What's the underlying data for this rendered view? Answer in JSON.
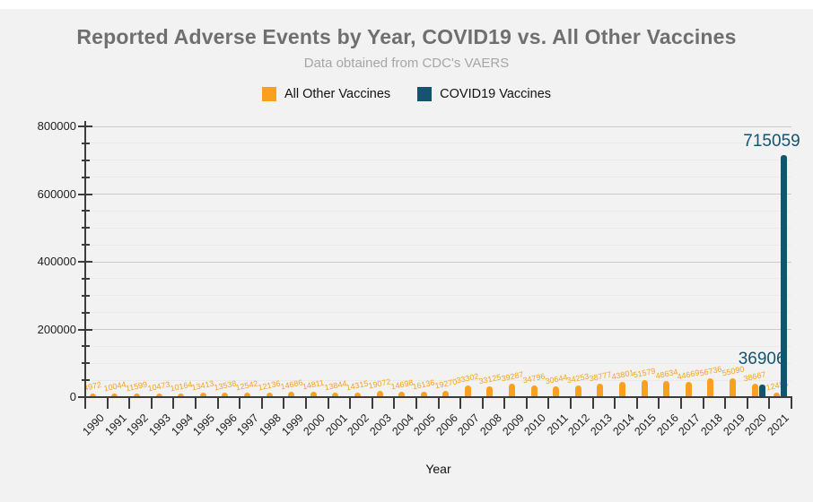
{
  "header": {
    "title": "Reported Adverse Events by Year, COVID19 vs. All Other Vaccines",
    "subtitle": "Data obtained from CDC's VAERS"
  },
  "legend": [
    {
      "label": "All Other Vaccines",
      "color": "#F9A11F"
    },
    {
      "label": "COVID19 Vaccines",
      "color": "#14546E"
    }
  ],
  "axes": {
    "x_title": "Year",
    "y_tick_labels": [
      "0",
      "200000",
      "400000",
      "600000",
      "800000"
    ]
  },
  "colors": {
    "page_background": "#f2f2f3",
    "title_text": "#6f6f6f",
    "subtitle_text": "#a6a6a6",
    "axis": "#3c3c3c",
    "grid_major": "#cbcbcb",
    "grid_minor": "#eaeaea",
    "other_series": "#F9A11F",
    "covid_series": "#14546E"
  },
  "chart_data": {
    "type": "bar",
    "title": "Reported Adverse Events by Year, COVID19 vs. All Other Vaccines",
    "subtitle": "Data obtained from CDC's VAERS",
    "xlabel": "Year",
    "ylabel": "",
    "ylim": [
      0,
      800000
    ],
    "y_major_step": 200000,
    "y_minor_step": 50000,
    "grid": true,
    "legend_position": "top",
    "categories": [
      "1990",
      "1991",
      "1992",
      "1993",
      "1994",
      "1995",
      "1996",
      "1997",
      "1998",
      "1999",
      "2000",
      "2001",
      "2002",
      "2003",
      "2004",
      "2005",
      "2006",
      "2007",
      "2008",
      "2009",
      "2010",
      "2011",
      "2012",
      "2013",
      "2014",
      "2015",
      "2016",
      "2017",
      "2018",
      "2019",
      "2020",
      "2021"
    ],
    "series": [
      {
        "name": "All Other Vaccines",
        "color": "#F9A11F",
        "values": [
          4972,
          10044,
          11599,
          10473,
          10164,
          13413,
          13538,
          12542,
          12136,
          14686,
          14811,
          13844,
          14315,
          19072,
          14698,
          16136,
          19270,
          33302,
          33125,
          39287,
          34796,
          30644,
          34253,
          38777,
          43801,
          51579,
          48634,
          44669,
          56736,
          55090,
          38667,
          12454
        ]
      },
      {
        "name": "COVID19 Vaccines",
        "color": "#14546E",
        "values": [
          0,
          0,
          0,
          0,
          0,
          0,
          0,
          0,
          0,
          0,
          0,
          0,
          0,
          0,
          0,
          0,
          0,
          0,
          0,
          0,
          0,
          0,
          0,
          0,
          0,
          0,
          0,
          0,
          0,
          0,
          36906,
          715059
        ]
      }
    ]
  }
}
